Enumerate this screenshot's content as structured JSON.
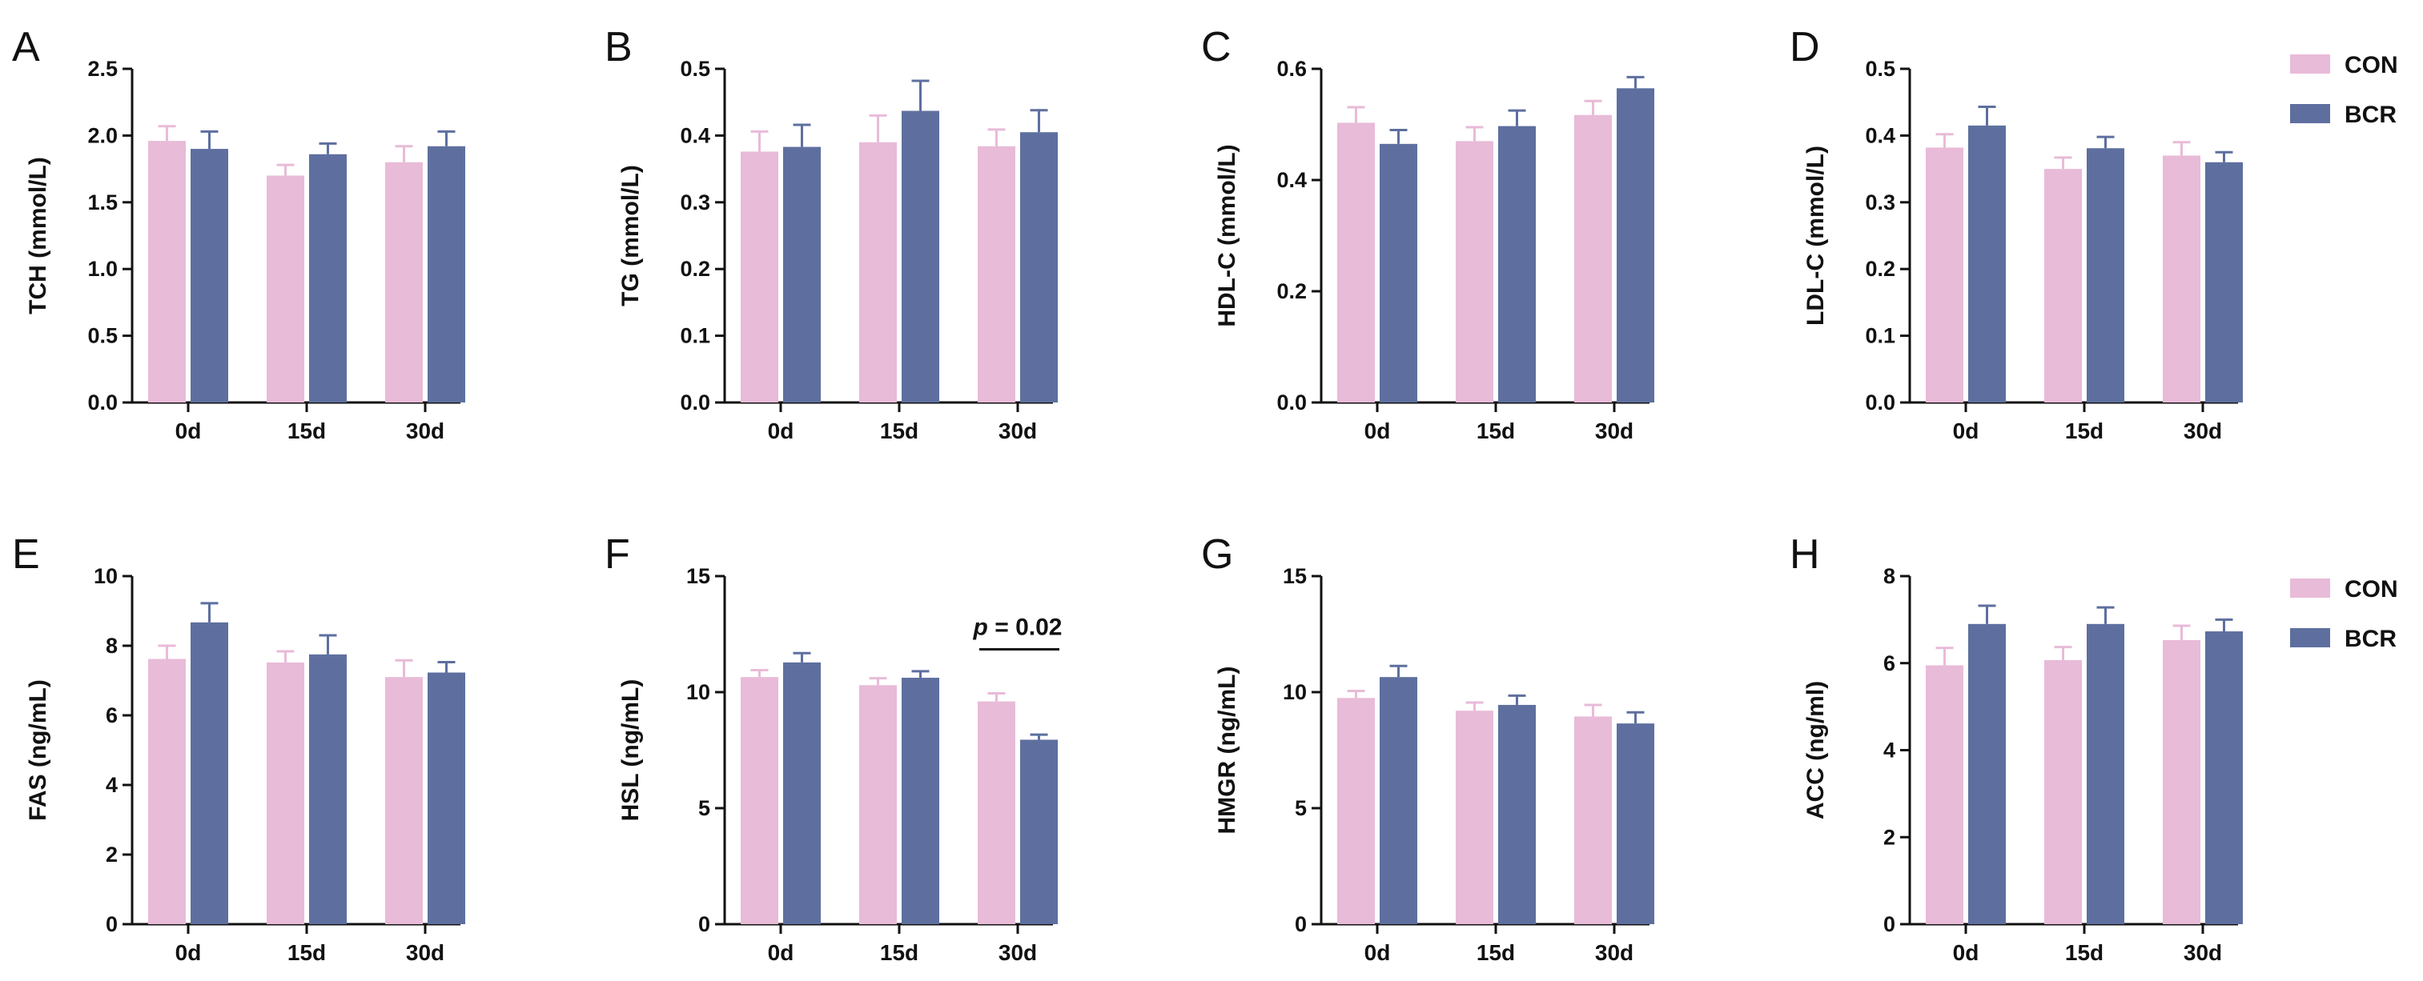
{
  "colors": {
    "con": "#e8bbd8",
    "bcr": "#5e6f9f",
    "axis": "#111111",
    "con_err": "#e8bbd8",
    "bcr_err": "#5e6f9f"
  },
  "legend": [
    {
      "name": "CON",
      "color": "#e8bbd8"
    },
    {
      "name": "BCR",
      "color": "#5e6f9f"
    }
  ],
  "chart_data": [
    {
      "panel": "A",
      "type": "bar",
      "ylabel": "TCH  (mmol/L)",
      "categories": [
        "0d",
        "15d",
        "30d"
      ],
      "ylim": [
        0,
        2.5
      ],
      "yticks": [
        "0.0",
        "0.5",
        "1.0",
        "1.5",
        "2.0",
        "2.5"
      ],
      "series": [
        {
          "name": "CON",
          "values": [
            1.96,
            1.7,
            1.8
          ],
          "errors": [
            0.11,
            0.08,
            0.12
          ]
        },
        {
          "name": "BCR",
          "values": [
            1.9,
            1.86,
            1.92
          ],
          "errors": [
            0.13,
            0.08,
            0.11
          ]
        }
      ]
    },
    {
      "panel": "B",
      "type": "bar",
      "ylabel": "TG  (mmol/L)",
      "categories": [
        "0d",
        "15d",
        "30d"
      ],
      "ylim": [
        0,
        0.5
      ],
      "yticks": [
        "0.0",
        "0.1",
        "0.2",
        "0.3",
        "0.4",
        "0.5"
      ],
      "series": [
        {
          "name": "CON",
          "values": [
            0.376,
            0.39,
            0.384
          ],
          "errors": [
            0.03,
            0.04,
            0.025
          ]
        },
        {
          "name": "BCR",
          "values": [
            0.383,
            0.437,
            0.405
          ],
          "errors": [
            0.033,
            0.045,
            0.033
          ]
        }
      ]
    },
    {
      "panel": "C",
      "type": "bar",
      "ylabel": "HDL-C  (mmol/L)",
      "categories": [
        "0d",
        "15d",
        "30d"
      ],
      "ylim": [
        0,
        0.6
      ],
      "yticks": [
        "0.0",
        "0.2",
        "0.4",
        "0.6"
      ],
      "series": [
        {
          "name": "CON",
          "values": [
            0.503,
            0.47,
            0.517
          ],
          "errors": [
            0.028,
            0.025,
            0.025
          ]
        },
        {
          "name": "BCR",
          "values": [
            0.465,
            0.497,
            0.565
          ],
          "errors": [
            0.025,
            0.028,
            0.02
          ]
        }
      ]
    },
    {
      "panel": "D",
      "type": "bar",
      "ylabel": "LDL-C  (mmol/L)",
      "categories": [
        "0d",
        "15d",
        "30d"
      ],
      "ylim": [
        0,
        0.5
      ],
      "yticks": [
        "0.0",
        "0.1",
        "0.2",
        "0.3",
        "0.4",
        "0.5"
      ],
      "series": [
        {
          "name": "CON",
          "values": [
            0.382,
            0.35,
            0.37
          ],
          "errors": [
            0.02,
            0.017,
            0.02
          ]
        },
        {
          "name": "BCR",
          "values": [
            0.415,
            0.381,
            0.36
          ],
          "errors": [
            0.028,
            0.017,
            0.015
          ]
        }
      ]
    },
    {
      "panel": "E",
      "type": "bar",
      "ylabel": "FAS (ng/mL)",
      "categories": [
        "0d",
        "15d",
        "30d"
      ],
      "ylim": [
        0,
        10
      ],
      "yticks": [
        "0",
        "2",
        "4",
        "6",
        "8",
        "10"
      ],
      "series": [
        {
          "name": "CON",
          "values": [
            7.62,
            7.52,
            7.1
          ],
          "errors": [
            0.38,
            0.32,
            0.48
          ]
        },
        {
          "name": "BCR",
          "values": [
            8.67,
            7.75,
            7.23
          ],
          "errors": [
            0.55,
            0.55,
            0.3
          ]
        }
      ]
    },
    {
      "panel": "F",
      "type": "bar",
      "ylabel": "HSL (ng/mL)",
      "categories": [
        "0d",
        "15d",
        "30d"
      ],
      "ylim": [
        0,
        15
      ],
      "yticks": [
        "0",
        "5",
        "10",
        "15"
      ],
      "annotation": {
        "p_label": "p",
        "p_rest": " = 0.02",
        "category": "30d"
      },
      "series": [
        {
          "name": "CON",
          "values": [
            10.65,
            10.3,
            9.6
          ],
          "errors": [
            0.3,
            0.3,
            0.35
          ]
        },
        {
          "name": "BCR",
          "values": [
            11.28,
            10.62,
            7.95
          ],
          "errors": [
            0.4,
            0.28,
            0.22
          ]
        }
      ]
    },
    {
      "panel": "G",
      "type": "bar",
      "ylabel": "HMGR  (ng/mL)",
      "categories": [
        "0d",
        "15d",
        "30d"
      ],
      "ylim": [
        0,
        15
      ],
      "yticks": [
        "0",
        "5",
        "10",
        "15"
      ],
      "series": [
        {
          "name": "CON",
          "values": [
            9.75,
            9.2,
            8.95
          ],
          "errors": [
            0.3,
            0.35,
            0.5
          ]
        },
        {
          "name": "BCR",
          "values": [
            10.65,
            9.45,
            8.65
          ],
          "errors": [
            0.48,
            0.4,
            0.48
          ]
        }
      ]
    },
    {
      "panel": "H",
      "type": "bar",
      "ylabel": "ACC (ng/ml)",
      "categories": [
        "0d",
        "15d",
        "30d"
      ],
      "ylim": [
        0,
        8
      ],
      "yticks": [
        "0",
        "2",
        "4",
        "6",
        "8"
      ],
      "series": [
        {
          "name": "CON",
          "values": [
            5.95,
            6.07,
            6.53
          ],
          "errors": [
            0.4,
            0.3,
            0.33
          ]
        },
        {
          "name": "BCR",
          "values": [
            6.9,
            6.9,
            6.73
          ],
          "errors": [
            0.42,
            0.38,
            0.27
          ]
        }
      ]
    }
  ]
}
